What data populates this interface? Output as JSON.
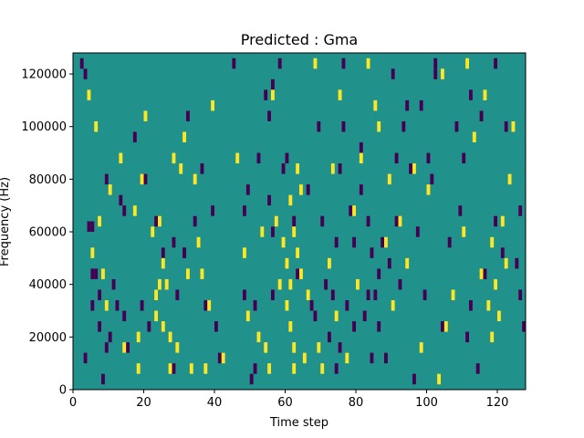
{
  "chart_data": {
    "type": "heatmap",
    "title": "Predicted : Gma",
    "xlabel": "Time step",
    "ylabel": "Frequency (Hz)",
    "xlim": [
      0,
      128
    ],
    "ylim": [
      0,
      128000
    ],
    "x_ticks": [
      0,
      20,
      40,
      60,
      80,
      100,
      120
    ],
    "y_ticks": [
      0,
      20000,
      40000,
      60000,
      80000,
      100000,
      120000
    ],
    "grid": false,
    "colors": {
      "background": "#21918c",
      "low": "#440154",
      "high": "#fde725"
    },
    "cell_size": {
      "time_steps": 1,
      "hz": 4000
    },
    "cells_low": [
      [
        2,
        122000
      ],
      [
        3,
        118000
      ],
      [
        3,
        10000
      ],
      [
        4,
        60000
      ],
      [
        5,
        60000
      ],
      [
        5,
        42000
      ],
      [
        6,
        42000
      ],
      [
        5,
        30000
      ],
      [
        7,
        22000
      ],
      [
        8,
        2000
      ],
      [
        7,
        34000
      ],
      [
        9,
        78000
      ],
      [
        9,
        14000
      ],
      [
        10,
        18000
      ],
      [
        11,
        38000
      ],
      [
        12,
        30000
      ],
      [
        13,
        70000
      ],
      [
        14,
        66000
      ],
      [
        14,
        26000
      ],
      [
        15,
        14000
      ],
      [
        17,
        94000
      ],
      [
        19,
        30000
      ],
      [
        20,
        78000
      ],
      [
        21,
        22000
      ],
      [
        23,
        62000
      ],
      [
        25,
        50000
      ],
      [
        28,
        54000
      ],
      [
        31,
        50000
      ],
      [
        29,
        34000
      ],
      [
        28,
        6000
      ],
      [
        32,
        102000
      ],
      [
        31,
        50000
      ],
      [
        34,
        62000
      ],
      [
        36,
        82000
      ],
      [
        37,
        30000
      ],
      [
        39,
        66000
      ],
      [
        40,
        22000
      ],
      [
        41,
        10000
      ],
      [
        45,
        122000
      ],
      [
        48,
        34000
      ],
      [
        48,
        66000
      ],
      [
        49,
        74000
      ],
      [
        50,
        2000
      ],
      [
        51,
        6000
      ],
      [
        51,
        30000
      ],
      [
        52,
        86000
      ],
      [
        54,
        110000
      ],
      [
        55,
        102000
      ],
      [
        56,
        114000
      ],
      [
        55,
        70000
      ],
      [
        56,
        58000
      ],
      [
        56,
        34000
      ],
      [
        58,
        122000
      ],
      [
        59,
        82000
      ],
      [
        60,
        86000
      ],
      [
        62,
        62000
      ],
      [
        63,
        42000
      ],
      [
        66,
        74000
      ],
      [
        67,
        30000
      ],
      [
        68,
        26000
      ],
      [
        69,
        98000
      ],
      [
        70,
        62000
      ],
      [
        71,
        38000
      ],
      [
        72,
        18000
      ],
      [
        73,
        34000
      ],
      [
        74,
        6000
      ],
      [
        74,
        54000
      ],
      [
        75,
        82000
      ],
      [
        75,
        14000
      ],
      [
        76,
        98000
      ],
      [
        76,
        122000
      ],
      [
        77,
        30000
      ],
      [
        78,
        66000
      ],
      [
        79,
        54000
      ],
      [
        79,
        22000
      ],
      [
        81,
        74000
      ],
      [
        81,
        90000
      ],
      [
        82,
        26000
      ],
      [
        83,
        34000
      ],
      [
        83,
        62000
      ],
      [
        84,
        10000
      ],
      [
        84,
        50000
      ],
      [
        85,
        34000
      ],
      [
        86,
        22000
      ],
      [
        86,
        42000
      ],
      [
        87,
        54000
      ],
      [
        88,
        10000
      ],
      [
        89,
        46000
      ],
      [
        90,
        118000
      ],
      [
        91,
        86000
      ],
      [
        91,
        62000
      ],
      [
        92,
        38000
      ],
      [
        93,
        98000
      ],
      [
        94,
        106000
      ],
      [
        95,
        82000
      ],
      [
        96,
        2000
      ],
      [
        97,
        58000
      ],
      [
        98,
        106000
      ],
      [
        99,
        34000
      ],
      [
        100,
        86000
      ],
      [
        101,
        78000
      ],
      [
        102,
        122000
      ],
      [
        102,
        118000
      ],
      [
        104,
        22000
      ],
      [
        106,
        54000
      ],
      [
        108,
        98000
      ],
      [
        109,
        66000
      ],
      [
        110,
        86000
      ],
      [
        111,
        18000
      ],
      [
        112,
        30000
      ],
      [
        112,
        110000
      ],
      [
        114,
        6000
      ],
      [
        115,
        102000
      ],
      [
        116,
        42000
      ],
      [
        119,
        122000
      ],
      [
        119,
        62000
      ],
      [
        121,
        50000
      ],
      [
        122,
        98000
      ],
      [
        125,
        46000
      ],
      [
        126,
        34000
      ],
      [
        126,
        66000
      ],
      [
        127,
        22000
      ]
    ],
    "cells_high": [
      [
        4,
        110000
      ],
      [
        5,
        50000
      ],
      [
        6,
        98000
      ],
      [
        7,
        62000
      ],
      [
        8,
        42000
      ],
      [
        9,
        30000
      ],
      [
        10,
        74000
      ],
      [
        13,
        86000
      ],
      [
        14,
        14000
      ],
      [
        17,
        66000
      ],
      [
        18,
        6000
      ],
      [
        18,
        18000
      ],
      [
        19,
        78000
      ],
      [
        20,
        102000
      ],
      [
        22,
        58000
      ],
      [
        23,
        34000
      ],
      [
        23,
        26000
      ],
      [
        24,
        62000
      ],
      [
        24,
        38000
      ],
      [
        25,
        46000
      ],
      [
        25,
        22000
      ],
      [
        26,
        38000
      ],
      [
        27,
        18000
      ],
      [
        27,
        6000
      ],
      [
        28,
        86000
      ],
      [
        29,
        14000
      ],
      [
        30,
        82000
      ],
      [
        31,
        94000
      ],
      [
        32,
        42000
      ],
      [
        33,
        6000
      ],
      [
        34,
        78000
      ],
      [
        35,
        54000
      ],
      [
        36,
        42000
      ],
      [
        37,
        6000
      ],
      [
        38,
        30000
      ],
      [
        39,
        106000
      ],
      [
        42,
        10000
      ],
      [
        46,
        86000
      ],
      [
        48,
        50000
      ],
      [
        49,
        26000
      ],
      [
        52,
        18000
      ],
      [
        53,
        58000
      ],
      [
        54,
        14000
      ],
      [
        55,
        6000
      ],
      [
        56,
        110000
      ],
      [
        57,
        62000
      ],
      [
        58,
        38000
      ],
      [
        59,
        54000
      ],
      [
        60,
        46000
      ],
      [
        60,
        30000
      ],
      [
        61,
        70000
      ],
      [
        61,
        38000
      ],
      [
        61,
        22000
      ],
      [
        62,
        58000
      ],
      [
        62,
        14000
      ],
      [
        62,
        6000
      ],
      [
        63,
        82000
      ],
      [
        63,
        50000
      ],
      [
        64,
        74000
      ],
      [
        64,
        42000
      ],
      [
        65,
        10000
      ],
      [
        66,
        34000
      ],
      [
        68,
        122000
      ],
      [
        69,
        14000
      ],
      [
        70,
        6000
      ],
      [
        72,
        46000
      ],
      [
        73,
        82000
      ],
      [
        74,
        26000
      ],
      [
        75,
        110000
      ],
      [
        77,
        10000
      ],
      [
        79,
        66000
      ],
      [
        80,
        38000
      ],
      [
        81,
        86000
      ],
      [
        83,
        122000
      ],
      [
        85,
        106000
      ],
      [
        86,
        98000
      ],
      [
        88,
        54000
      ],
      [
        89,
        78000
      ],
      [
        90,
        30000
      ],
      [
        92,
        62000
      ],
      [
        94,
        46000
      ],
      [
        96,
        82000
      ],
      [
        98,
        14000
      ],
      [
        100,
        74000
      ],
      [
        103,
        2000
      ],
      [
        104,
        118000
      ],
      [
        105,
        22000
      ],
      [
        107,
        34000
      ],
      [
        110,
        58000
      ],
      [
        111,
        122000
      ],
      [
        113,
        94000
      ],
      [
        115,
        42000
      ],
      [
        116,
        110000
      ],
      [
        117,
        30000
      ],
      [
        118,
        54000
      ],
      [
        118,
        18000
      ],
      [
        119,
        38000
      ],
      [
        120,
        26000
      ],
      [
        121,
        62000
      ],
      [
        122,
        46000
      ],
      [
        123,
        78000
      ],
      [
        124,
        98000
      ]
    ]
  }
}
